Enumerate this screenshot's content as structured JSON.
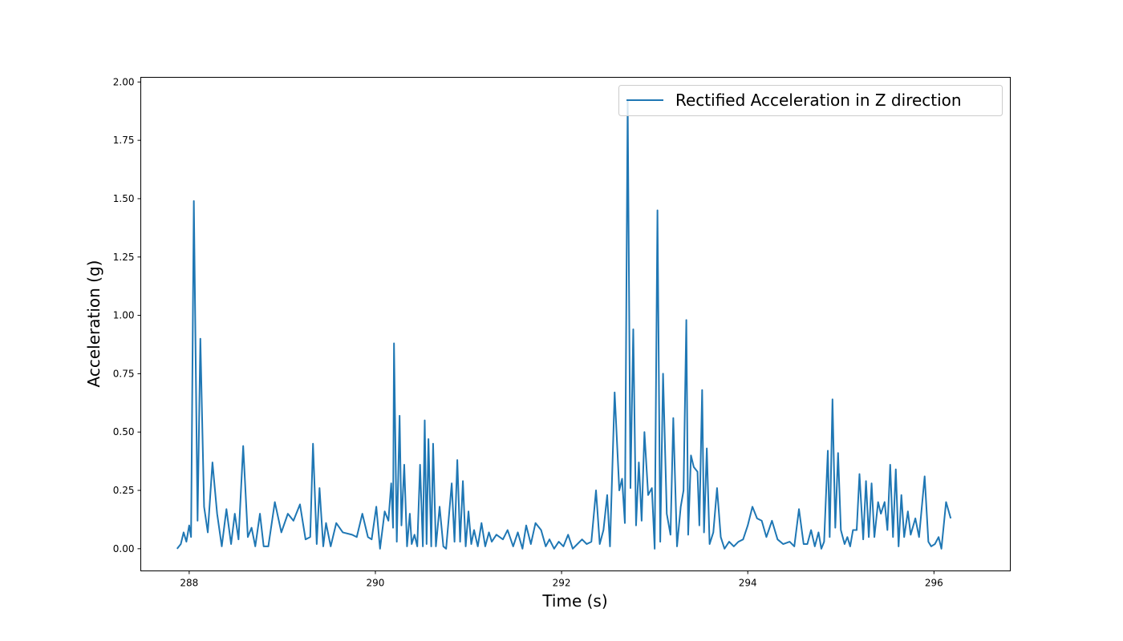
{
  "chart_data": {
    "type": "line",
    "title": "",
    "xlabel": "Time (s)",
    "ylabel": "Acceleration (g)",
    "xlim": [
      287.48,
      296.82
    ],
    "ylim": [
      -0.095,
      2.02
    ],
    "xticks": [
      288,
      290,
      292,
      294,
      296
    ],
    "xtick_labels": [
      "288",
      "290",
      "292",
      "294",
      "296"
    ],
    "yticks": [
      0.0,
      0.25,
      0.5,
      0.75,
      1.0,
      1.25,
      1.5,
      1.75,
      2.0
    ],
    "ytick_labels": [
      "0.00",
      "0.25",
      "0.50",
      "0.75",
      "1.00",
      "1.25",
      "1.50",
      "1.75",
      "2.00"
    ],
    "grid": false,
    "legend_position": "top-right",
    "series": [
      {
        "name": "Rectified Acceleration in Z direction",
        "color": "#1f77b4",
        "points": [
          [
            287.87,
            0.0
          ],
          [
            287.91,
            0.02
          ],
          [
            287.94,
            0.07
          ],
          [
            287.97,
            0.03
          ],
          [
            288.0,
            0.1
          ],
          [
            288.02,
            0.05
          ],
          [
            288.05,
            1.49
          ],
          [
            288.09,
            0.12
          ],
          [
            288.12,
            0.9
          ],
          [
            288.16,
            0.18
          ],
          [
            288.2,
            0.07
          ],
          [
            288.25,
            0.37
          ],
          [
            288.3,
            0.15
          ],
          [
            288.35,
            0.01
          ],
          [
            288.4,
            0.17
          ],
          [
            288.45,
            0.02
          ],
          [
            288.49,
            0.15
          ],
          [
            288.53,
            0.04
          ],
          [
            288.58,
            0.44
          ],
          [
            288.63,
            0.05
          ],
          [
            288.67,
            0.09
          ],
          [
            288.71,
            0.01
          ],
          [
            288.76,
            0.15
          ],
          [
            288.8,
            0.01
          ],
          [
            288.85,
            0.01
          ],
          [
            288.92,
            0.2
          ],
          [
            288.99,
            0.07
          ],
          [
            289.06,
            0.15
          ],
          [
            289.12,
            0.12
          ],
          [
            289.19,
            0.19
          ],
          [
            289.25,
            0.04
          ],
          [
            289.3,
            0.05
          ],
          [
            289.33,
            0.45
          ],
          [
            289.37,
            0.02
          ],
          [
            289.4,
            0.26
          ],
          [
            289.44,
            0.01
          ],
          [
            289.47,
            0.11
          ],
          [
            289.52,
            0.01
          ],
          [
            289.58,
            0.11
          ],
          [
            289.65,
            0.07
          ],
          [
            289.75,
            0.06
          ],
          [
            289.8,
            0.05
          ],
          [
            289.86,
            0.15
          ],
          [
            289.92,
            0.05
          ],
          [
            289.96,
            0.04
          ],
          [
            290.01,
            0.18
          ],
          [
            290.05,
            0.0
          ],
          [
            290.1,
            0.16
          ],
          [
            290.14,
            0.12
          ],
          [
            290.17,
            0.28
          ],
          [
            290.19,
            0.09
          ],
          [
            290.2,
            0.88
          ],
          [
            290.23,
            0.03
          ],
          [
            290.26,
            0.57
          ],
          [
            290.28,
            0.1
          ],
          [
            290.31,
            0.36
          ],
          [
            290.34,
            0.01
          ],
          [
            290.37,
            0.15
          ],
          [
            290.39,
            0.02
          ],
          [
            290.42,
            0.06
          ],
          [
            290.45,
            0.01
          ],
          [
            290.48,
            0.36
          ],
          [
            290.51,
            0.01
          ],
          [
            290.53,
            0.55
          ],
          [
            290.55,
            0.02
          ],
          [
            290.57,
            0.47
          ],
          [
            290.6,
            0.01
          ],
          [
            290.62,
            0.45
          ],
          [
            290.65,
            0.01
          ],
          [
            290.69,
            0.18
          ],
          [
            290.73,
            0.01
          ],
          [
            290.76,
            0.0
          ],
          [
            290.82,
            0.28
          ],
          [
            290.85,
            0.03
          ],
          [
            290.88,
            0.38
          ],
          [
            290.91,
            0.03
          ],
          [
            290.94,
            0.29
          ],
          [
            290.97,
            0.01
          ],
          [
            291.0,
            0.16
          ],
          [
            291.03,
            0.02
          ],
          [
            291.06,
            0.08
          ],
          [
            291.1,
            0.01
          ],
          [
            291.14,
            0.11
          ],
          [
            291.18,
            0.01
          ],
          [
            291.22,
            0.07
          ],
          [
            291.25,
            0.03
          ],
          [
            291.3,
            0.06
          ],
          [
            291.37,
            0.04
          ],
          [
            291.42,
            0.08
          ],
          [
            291.48,
            0.01
          ],
          [
            291.53,
            0.07
          ],
          [
            291.58,
            0.0
          ],
          [
            291.62,
            0.1
          ],
          [
            291.67,
            0.02
          ],
          [
            291.72,
            0.11
          ],
          [
            291.78,
            0.08
          ],
          [
            291.83,
            0.01
          ],
          [
            291.87,
            0.04
          ],
          [
            291.92,
            0.0
          ],
          [
            291.97,
            0.03
          ],
          [
            292.02,
            0.01
          ],
          [
            292.07,
            0.06
          ],
          [
            292.12,
            0.0
          ],
          [
            292.17,
            0.02
          ],
          [
            292.22,
            0.04
          ],
          [
            292.27,
            0.02
          ],
          [
            292.32,
            0.03
          ],
          [
            292.37,
            0.25
          ],
          [
            292.41,
            0.02
          ],
          [
            292.45,
            0.08
          ],
          [
            292.49,
            0.23
          ],
          [
            292.52,
            0.01
          ],
          [
            292.57,
            0.67
          ],
          [
            292.62,
            0.25
          ],
          [
            292.65,
            0.3
          ],
          [
            292.68,
            0.11
          ],
          [
            292.71,
            1.92
          ],
          [
            292.74,
            0.26
          ],
          [
            292.77,
            0.94
          ],
          [
            292.8,
            0.1
          ],
          [
            292.83,
            0.37
          ],
          [
            292.86,
            0.12
          ],
          [
            292.89,
            0.5
          ],
          [
            292.93,
            0.23
          ],
          [
            292.97,
            0.26
          ],
          [
            293.0,
            0.0
          ],
          [
            293.03,
            1.45
          ],
          [
            293.06,
            0.03
          ],
          [
            293.09,
            0.75
          ],
          [
            293.13,
            0.15
          ],
          [
            293.17,
            0.06
          ],
          [
            293.2,
            0.56
          ],
          [
            293.24,
            0.01
          ],
          [
            293.28,
            0.18
          ],
          [
            293.31,
            0.25
          ],
          [
            293.34,
            0.98
          ],
          [
            293.36,
            0.06
          ],
          [
            293.39,
            0.4
          ],
          [
            293.42,
            0.35
          ],
          [
            293.46,
            0.33
          ],
          [
            293.48,
            0.1
          ],
          [
            293.51,
            0.68
          ],
          [
            293.53,
            0.07
          ],
          [
            293.56,
            0.43
          ],
          [
            293.59,
            0.02
          ],
          [
            293.63,
            0.07
          ],
          [
            293.67,
            0.26
          ],
          [
            293.71,
            0.05
          ],
          [
            293.75,
            0.0
          ],
          [
            293.8,
            0.03
          ],
          [
            293.85,
            0.01
          ],
          [
            293.9,
            0.03
          ],
          [
            293.95,
            0.04
          ],
          [
            294.0,
            0.1
          ],
          [
            294.05,
            0.18
          ],
          [
            294.1,
            0.13
          ],
          [
            294.15,
            0.12
          ],
          [
            294.2,
            0.05
          ],
          [
            294.26,
            0.12
          ],
          [
            294.32,
            0.04
          ],
          [
            294.38,
            0.02
          ],
          [
            294.45,
            0.03
          ],
          [
            294.5,
            0.01
          ],
          [
            294.55,
            0.17
          ],
          [
            294.6,
            0.02
          ],
          [
            294.64,
            0.02
          ],
          [
            294.68,
            0.08
          ],
          [
            294.72,
            0.01
          ],
          [
            294.76,
            0.07
          ],
          [
            294.79,
            0.0
          ],
          [
            294.82,
            0.03
          ],
          [
            294.86,
            0.42
          ],
          [
            294.88,
            0.05
          ],
          [
            294.91,
            0.64
          ],
          [
            294.94,
            0.09
          ],
          [
            294.97,
            0.41
          ],
          [
            295.0,
            0.08
          ],
          [
            295.04,
            0.02
          ],
          [
            295.07,
            0.05
          ],
          [
            295.1,
            0.01
          ],
          [
            295.13,
            0.08
          ],
          [
            295.17,
            0.08
          ],
          [
            295.2,
            0.32
          ],
          [
            295.24,
            0.04
          ],
          [
            295.27,
            0.29
          ],
          [
            295.3,
            0.05
          ],
          [
            295.33,
            0.28
          ],
          [
            295.36,
            0.05
          ],
          [
            295.4,
            0.2
          ],
          [
            295.43,
            0.15
          ],
          [
            295.47,
            0.2
          ],
          [
            295.5,
            0.08
          ],
          [
            295.53,
            0.36
          ],
          [
            295.56,
            0.05
          ],
          [
            295.59,
            0.34
          ],
          [
            295.62,
            0.01
          ],
          [
            295.65,
            0.23
          ],
          [
            295.68,
            0.05
          ],
          [
            295.72,
            0.16
          ],
          [
            295.75,
            0.06
          ],
          [
            295.8,
            0.13
          ],
          [
            295.84,
            0.05
          ],
          [
            295.9,
            0.31
          ],
          [
            295.94,
            0.03
          ],
          [
            295.97,
            0.01
          ],
          [
            296.01,
            0.02
          ],
          [
            296.05,
            0.05
          ],
          [
            296.08,
            0.0
          ],
          [
            296.13,
            0.2
          ],
          [
            296.18,
            0.13
          ]
        ]
      }
    ]
  }
}
